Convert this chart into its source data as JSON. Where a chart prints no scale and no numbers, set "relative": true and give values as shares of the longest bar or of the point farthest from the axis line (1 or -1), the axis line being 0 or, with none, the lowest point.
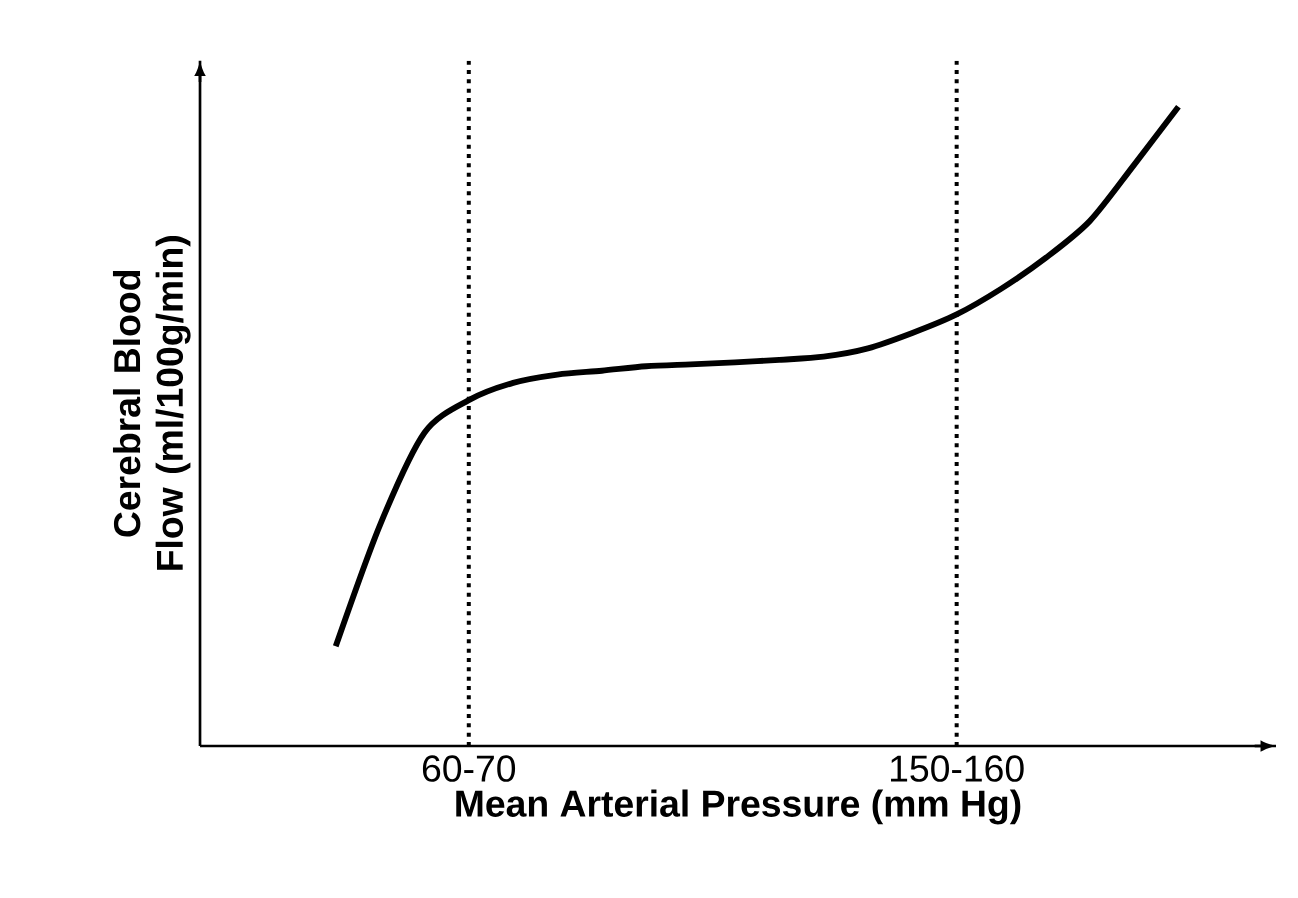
{
  "chart_data": {
    "type": "line",
    "relative": true,
    "xlabel": "Mean Arterial Pressure (mm Hg)",
    "ylabel": "Cerebral Blood Flow (ml/100g/min)",
    "tick_labels": "x",
    "categories": [
      null,
      null,
      null,
      "60-70",
      null,
      null,
      null,
      null,
      null,
      null,
      null,
      null,
      null,
      null,
      "150-160",
      null,
      null,
      null,
      null,
      null
    ],
    "ref_lines": [
      {
        "axis": "x",
        "value": "60-70",
        "line_style": "dotted",
        "color": "#000000"
      },
      {
        "axis": "x",
        "value": "150-160",
        "line_style": "dotted",
        "color": "#000000"
      }
    ],
    "series": [
      {
        "color": "#000000",
        "values": [
          0.156,
          0.346,
          0.49,
          0.541,
          0.568,
          0.581,
          0.587,
          0.594,
          0.597,
          0.6,
          0.604,
          0.609,
          0.622,
          0.646,
          0.675,
          0.715,
          0.763,
          0.821,
          0.909,
          1.0
        ]
      }
    ]
  }
}
